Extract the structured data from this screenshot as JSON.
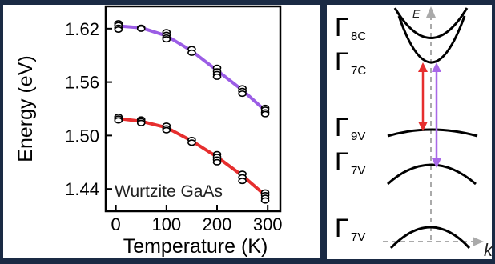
{
  "chart_data": {
    "type": "line",
    "xlabel": "Temperature (K)",
    "ylabel": "Energy (eV)",
    "annotation": "Wurtzite GaAs",
    "xlim": [
      -20,
      325
    ],
    "ylim": [
      1.415,
      1.645
    ],
    "xticks": [
      0,
      100,
      200,
      300
    ],
    "xtick_labels": [
      "0",
      "100",
      "200",
      "300"
    ],
    "yticks": [
      1.44,
      1.5,
      1.56,
      1.62
    ],
    "ytick_labels": [
      "1.44",
      "1.50",
      "1.56",
      "1.62"
    ],
    "grid": false,
    "series": [
      {
        "color": "#9b5de5",
        "fit": {
          "x": [
            5,
            50,
            100,
            150,
            200,
            250,
            295
          ],
          "y": [
            1.623,
            1.621,
            1.612,
            1.595,
            1.573,
            1.551,
            1.528
          ]
        },
        "points": {
          "x": [
            5,
            5,
            5,
            5,
            50,
            50,
            100,
            100,
            100,
            100,
            150,
            150,
            200,
            200,
            200,
            200,
            250,
            250,
            250,
            295,
            295,
            295,
            295
          ],
          "y": [
            1.626,
            1.624,
            1.621,
            1.619,
            1.621,
            1.62,
            1.616,
            1.613,
            1.61,
            1.608,
            1.597,
            1.593,
            1.576,
            1.572,
            1.569,
            1.566,
            1.553,
            1.55,
            1.547,
            1.531,
            1.529,
            1.526,
            1.524
          ]
        }
      },
      {
        "color": "#e62e2e",
        "fit": {
          "x": [
            5,
            50,
            100,
            150,
            200,
            250,
            295
          ],
          "y": [
            1.519,
            1.516,
            1.509,
            1.494,
            1.476,
            1.455,
            1.433
          ]
        },
        "points": {
          "x": [
            5,
            5,
            5,
            50,
            50,
            50,
            100,
            100,
            100,
            150,
            150,
            200,
            200,
            200,
            200,
            250,
            250,
            250,
            295,
            295,
            295,
            295
          ],
          "y": [
            1.521,
            1.519,
            1.517,
            1.518,
            1.516,
            1.514,
            1.511,
            1.508,
            1.506,
            1.495,
            1.492,
            1.479,
            1.476,
            1.473,
            1.47,
            1.457,
            1.453,
            1.449,
            1.436,
            1.433,
            1.43,
            1.427
          ]
        }
      }
    ]
  },
  "band_diagram": {
    "e_axis_label": "E",
    "k_axis_label": "k",
    "bands": [
      {
        "sym": "Γ",
        "sub": "8C"
      },
      {
        "sym": "Γ",
        "sub": "7C"
      },
      {
        "sym": "Γ",
        "sub": "9V"
      },
      {
        "sym": "Γ",
        "sub": "7V"
      },
      {
        "sym": "Γ",
        "sub": "7V"
      }
    ],
    "transition_colors": {
      "red": "#e62e2e",
      "purple": "#a868e8"
    }
  }
}
